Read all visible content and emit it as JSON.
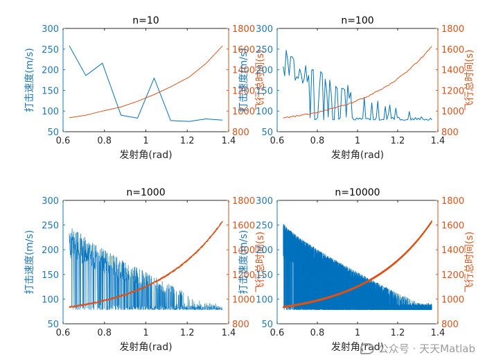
{
  "chart_data": [
    {
      "type": "line",
      "title": "n=10",
      "xlabel": "发射角(rad)",
      "ylabel_left": "打击速度(m/s)",
      "ylabel_right": "飞行总时间(s)",
      "xlim": [
        0.6,
        1.4
      ],
      "ylim_left": [
        50,
        300
      ],
      "ylim_right": [
        800,
        1800
      ],
      "xticks": [
        "0.6",
        "0.8",
        "1",
        "1.2",
        "1.4"
      ],
      "yticks_left": [
        "50",
        "100",
        "150",
        "200",
        "250",
        "300"
      ],
      "yticks_right": [
        "800",
        "1000",
        "1200",
        "1400",
        "1600",
        "1800"
      ],
      "series": [
        {
          "name": "打击速度",
          "axis": "left",
          "color": "#0072BD",
          "x": [
            0.63,
            0.71,
            0.79,
            0.88,
            0.96,
            1.04,
            1.12,
            1.21,
            1.29,
            1.37
          ],
          "y": [
            258,
            186,
            216,
            90,
            83,
            180,
            77,
            75,
            81,
            78
          ]
        },
        {
          "name": "飞行总时间",
          "axis": "right",
          "color": "#D95319",
          "x": [
            0.63,
            0.71,
            0.79,
            0.88,
            0.96,
            1.04,
            1.12,
            1.21,
            1.29,
            1.37
          ],
          "y": [
            935,
            960,
            1000,
            1040,
            1095,
            1160,
            1235,
            1330,
            1460,
            1630
          ]
        }
      ]
    },
    {
      "type": "line",
      "title": "n=100",
      "xlabel": "发射角(rad)",
      "ylabel_left": "打击速度(m/s)",
      "ylabel_right": "飞行总时间(s)",
      "xlim": [
        0.6,
        1.4
      ],
      "ylim_left": [
        50,
        300
      ],
      "ylim_right": [
        800,
        1800
      ],
      "xticks": [
        "0.6",
        "0.8",
        "1",
        "1.2",
        "1.4"
      ],
      "yticks_left": [
        "50",
        "100",
        "150",
        "200",
        "250",
        "300"
      ],
      "yticks_right": [
        "800",
        "1000",
        "1200",
        "1400",
        "1600",
        "1800"
      ],
      "series": [
        {
          "name": "打击速度",
          "axis": "left",
          "color": "#0072BD",
          "n": 100,
          "x_range": [
            0.63,
            1.37
          ],
          "upper_start": 255,
          "upper_end": 80,
          "base": 78
        },
        {
          "name": "飞行总时间",
          "axis": "right",
          "color": "#D95319",
          "n": 100,
          "x_range": [
            0.63,
            1.37
          ],
          "y_start": 935,
          "y_end": 1630
        }
      ]
    },
    {
      "type": "line",
      "title": "n=1000",
      "xlabel": "发射角(rad)",
      "ylabel_left": "打击速度(m/s)",
      "ylabel_right": "飞行总时间(s)",
      "xlim": [
        0.6,
        1.4
      ],
      "ylim_left": [
        50,
        300
      ],
      "ylim_right": [
        800,
        1800
      ],
      "xticks": [
        "0.6",
        "0.8",
        "1",
        "1.2",
        "1.4"
      ],
      "yticks_left": [
        "50",
        "100",
        "150",
        "200",
        "250",
        "300"
      ],
      "yticks_right": [
        "800",
        "1000",
        "1200",
        "1400",
        "1600",
        "1800"
      ],
      "series": [
        {
          "name": "打击速度",
          "axis": "left",
          "color": "#0072BD",
          "n": 1000,
          "x_range": [
            0.63,
            1.37
          ],
          "upper_start": 255,
          "upper_end": 80,
          "base": 78
        },
        {
          "name": "飞行总时间",
          "axis": "right",
          "color": "#D95319",
          "n": 1000,
          "x_range": [
            0.63,
            1.37
          ],
          "y_start": 935,
          "y_end": 1630
        }
      ]
    },
    {
      "type": "line",
      "title": "n=10000",
      "xlabel": "发射角(rad)",
      "ylabel_left": "打击速度(m/s)",
      "ylabel_right": "飞行总时间(s)",
      "xlim": [
        0.6,
        1.4
      ],
      "ylim_left": [
        50,
        300
      ],
      "ylim_right": [
        800,
        1800
      ],
      "xticks": [
        "0.6",
        "0.8",
        "1",
        "1.2",
        "1.4"
      ],
      "yticks_left": [
        "50",
        "100",
        "150",
        "200",
        "250",
        "300"
      ],
      "yticks_right": [
        "800",
        "1000",
        "1200",
        "1400",
        "1600",
        "1800"
      ],
      "series": [
        {
          "name": "打击速度",
          "axis": "left",
          "color": "#0072BD",
          "n": 10000,
          "x_range": [
            0.63,
            1.37
          ],
          "upper_start": 255,
          "upper_end": 80,
          "base": 78
        },
        {
          "name": "飞行总时间",
          "axis": "right",
          "color": "#D95319",
          "n": 10000,
          "x_range": [
            0.63,
            1.37
          ],
          "y_start": 935,
          "y_end": 1630
        }
      ]
    }
  ],
  "watermark": {
    "text": "公众号 · 天天Matlab",
    "icon": "wechat-icon"
  }
}
